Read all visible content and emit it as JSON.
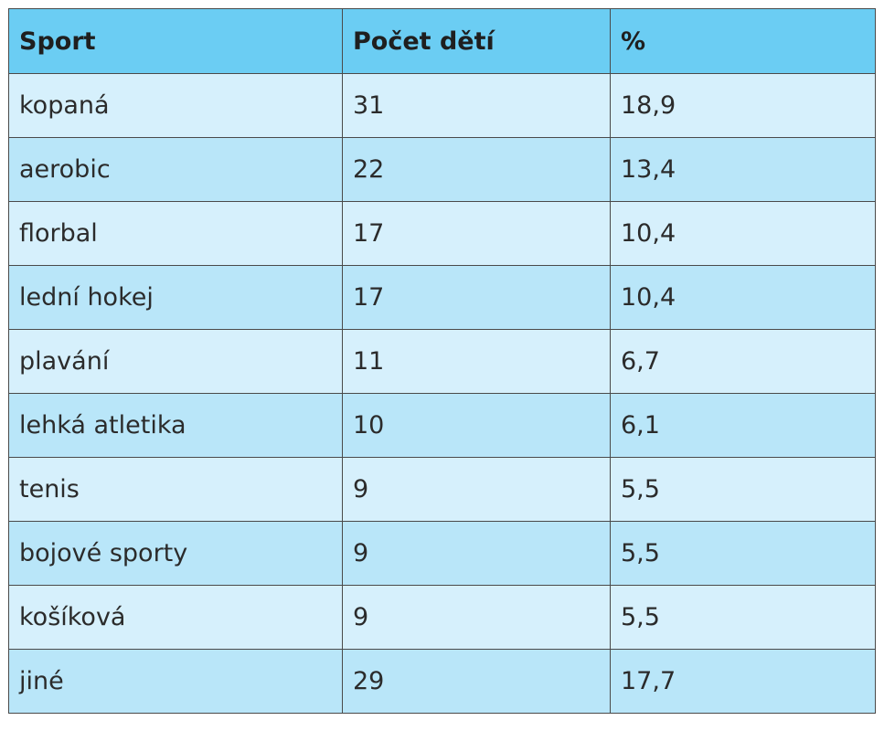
{
  "table": {
    "headers": [
      "Sport",
      "Počet dětí",
      "%"
    ],
    "rows": [
      [
        "kopaná",
        "31",
        "18,9"
      ],
      [
        "aerobic",
        "22",
        "13,4"
      ],
      [
        "florbal",
        "17",
        "10,4"
      ],
      [
        "lední hokej",
        "17",
        "10,4"
      ],
      [
        "plavání",
        "11",
        "6,7"
      ],
      [
        "lehká atletika",
        "10",
        "6,1"
      ],
      [
        "tenis",
        "9",
        "5,5"
      ],
      [
        "bojové sporty",
        "9",
        "5,5"
      ],
      [
        "košíková",
        "9",
        "5,5"
      ],
      [
        "jiné",
        "29",
        "17,7"
      ]
    ]
  },
  "colors": {
    "header_background": "#6bcdf3",
    "row_light": "#d6f0fc",
    "row_dark": "#b9e6f9",
    "border": "#4a4a4a"
  }
}
